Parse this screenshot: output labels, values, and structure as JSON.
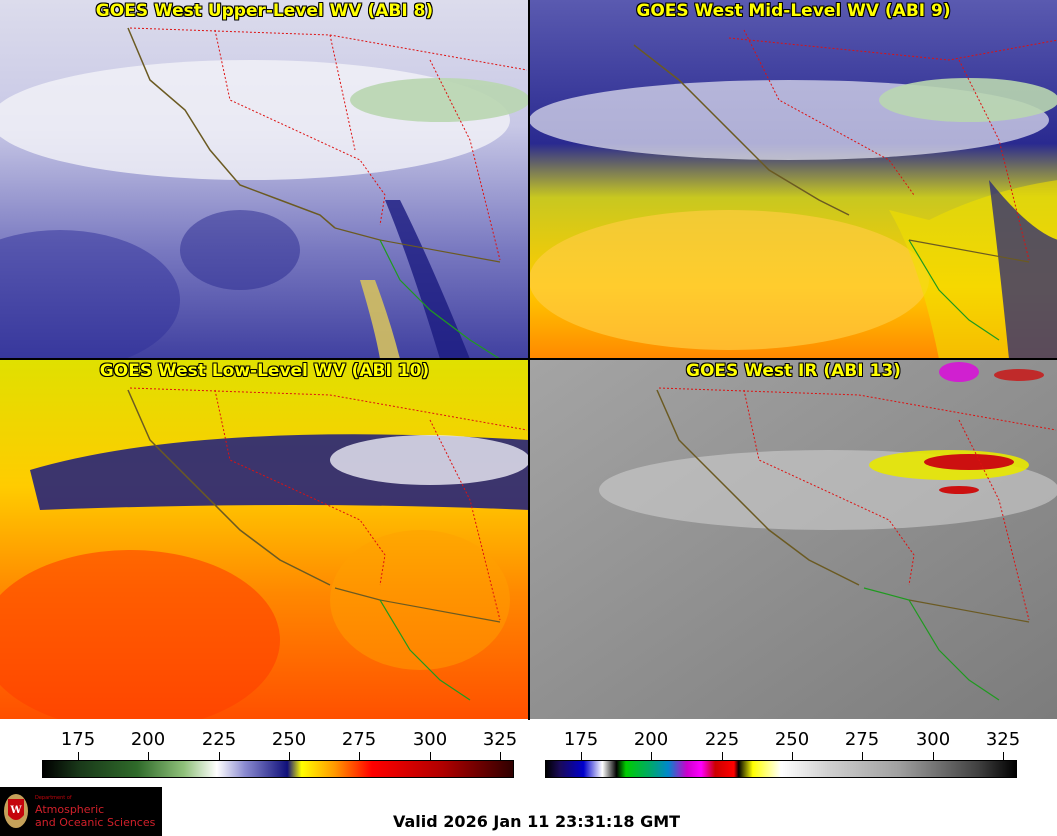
{
  "panels": [
    {
      "id": "upper",
      "title": "GOES West Upper-Level WV (ABI 8)"
    },
    {
      "id": "mid",
      "title": "GOES West Mid-Level WV (ABI 9)"
    },
    {
      "id": "low",
      "title": "GOES West Low-Level WV (ABI 10)"
    },
    {
      "id": "ir",
      "title": "GOES West IR (ABI 13)"
    }
  ],
  "colorbars": {
    "wv": {
      "ticks": [
        "175",
        "200",
        "225",
        "250",
        "275",
        "300",
        "325"
      ]
    },
    "ir": {
      "ticks": [
        "175",
        "200",
        "225",
        "250",
        "275",
        "300",
        "325"
      ]
    }
  },
  "footer": {
    "logo_dept": "Department of",
    "logo_line1": "Atmospheric",
    "logo_line2": "and Oceanic Sciences",
    "valid": "Valid 2026 Jan 11 23:31:18 GMT"
  },
  "colors": {
    "title": "#ffff00",
    "state_lines": "#dd1111",
    "coast_us": "#6b5a22",
    "coast_mx": "#1f9a1f"
  }
}
